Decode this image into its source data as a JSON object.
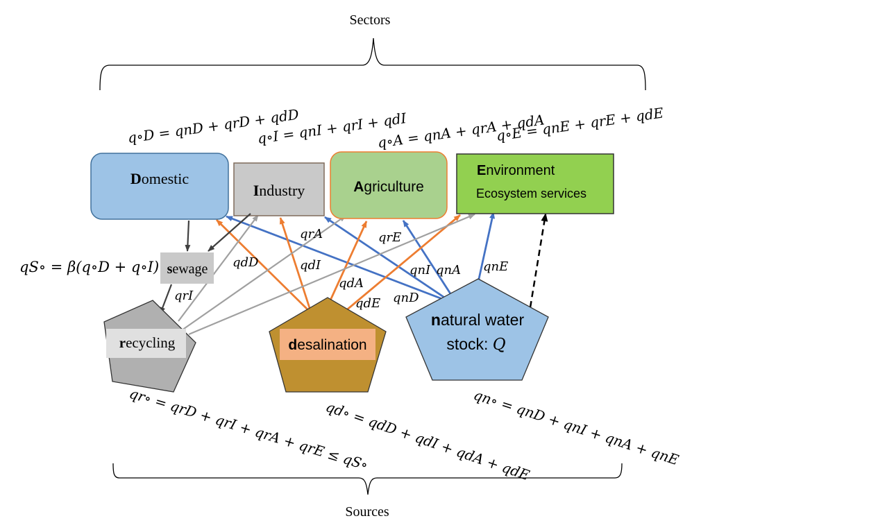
{
  "header": {
    "sectors_label": "Sectors"
  },
  "footer": {
    "sources_label": "Sources"
  },
  "sectors": {
    "domestic": {
      "initial": "D",
      "rest": "omestic"
    },
    "industry": {
      "initial": "I",
      "rest": "ndustry"
    },
    "agriculture": {
      "initial": "A",
      "rest": "griculture"
    },
    "environment": {
      "initial": "E",
      "rest": "nvironment",
      "subtitle": "Ecosystem services"
    }
  },
  "sources": {
    "sewage": {
      "initial": "s",
      "rest": "ewage"
    },
    "recycling": {
      "initial": "r",
      "rest": "ecycling"
    },
    "desalination": {
      "initial": "d",
      "rest": "esalination"
    },
    "natural": {
      "initial": "n",
      "rest": "atural water",
      "line2": "stock: ",
      "symbol": "Q"
    }
  },
  "equations": {
    "domestic": "q∘D = qnD + qrD + qdD",
    "industry": "q∘I = qnI + qrI + qdI",
    "agriculture": "q∘A = qnA + qrA + qdA",
    "environment": "q∘E = qnE + qrE + qdE",
    "sewage": "qS∘ =  β(q∘D + q∘I)",
    "recycling": "qr∘ = qrD + qrI + qrA + qrE ≤ qS∘",
    "desalination": "qd∘ = qdD + qdI + qdA + qdE",
    "natural": "qn∘ = qnD + qnI + qnA + qnE"
  },
  "flow_labels": {
    "qrA": "qrA",
    "qrE": "qrE",
    "qdD": "qdD",
    "qdI": "qdI",
    "qnI": "qnI",
    "qnA": "qnA",
    "qnE": "qnE",
    "qrI": "qrI",
    "qdA": "qdA",
    "qdE": "qdE",
    "qnD": "qnD"
  },
  "colors": {
    "domestic_fill": "#9dc3e6",
    "domestic_stroke": "#41719c",
    "industry_fill": "#c9c9c9",
    "industry_stroke": "#7f6a5a",
    "agriculture_fill": "#a9d18e",
    "agriculture_stroke": "#ed7d31",
    "environment_fill": "#92d050",
    "environment_stroke": "#333333",
    "sewage_fill": "#c9c9c9",
    "recycling_fill": "#b0b0b0",
    "recycling_label_bg": "#e0e0e0",
    "desalination_fill": "#bf9030",
    "desalination_label_bg": "#f4b183",
    "natural_fill": "#9dc3e6",
    "natural_arrow": "#4472c4",
    "desal_arrow": "#ed7d31",
    "recycle_arrow": "#a0a0a0",
    "sewage_arrow": "#404040"
  }
}
